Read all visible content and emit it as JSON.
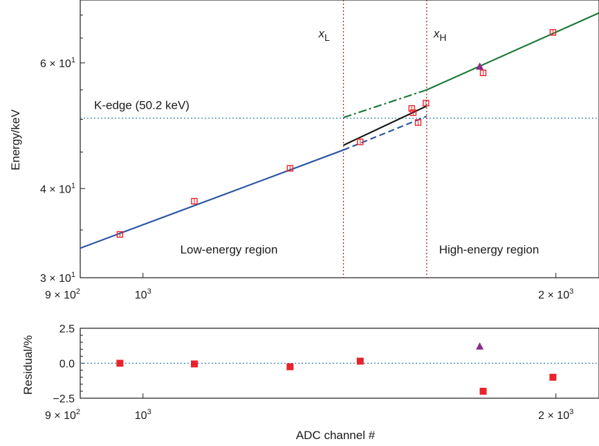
{
  "chart_data": [
    {
      "type": "scatter",
      "panel": "main",
      "ylabel": "Energy/keV",
      "xscale": "log",
      "yscale": "log",
      "xlim": [
        900,
        2150
      ],
      "ylim": [
        30,
        73.5
      ],
      "x_ticks": [
        {
          "value": 900,
          "label": "9 × 10",
          "exp": "2"
        },
        {
          "value": 1000,
          "label": "10",
          "exp": "3"
        },
        {
          "value": 2000,
          "label": "2 × 10",
          "exp": "3"
        }
      ],
      "y_ticks": [
        {
          "value": 30,
          "label": "3 × 10",
          "exp": "1"
        },
        {
          "value": 40,
          "label": "4 × 10",
          "exp": "1"
        },
        {
          "value": 60,
          "label": "6 × 10",
          "exp": "1"
        }
      ],
      "y_minor_ticks": [
        35,
        45,
        50,
        55,
        65,
        70
      ],
      "series": [
        {
          "role": "calibration-points",
          "marker": "square-open",
          "color": "#e8232a",
          "points": [
            {
              "x": 962,
              "y": 34.5
            },
            {
              "x": 1090,
              "y": 38.4
            },
            {
              "x": 1280,
              "y": 42.7
            },
            {
              "x": 1440,
              "y": 46.5
            },
            {
              "x": 1570,
              "y": 51.8
            },
            {
              "x": 1574,
              "y": 51.1
            },
            {
              "x": 1587,
              "y": 49.5
            },
            {
              "x": 1608,
              "y": 52.7
            },
            {
              "x": 1770,
              "y": 58.1
            },
            {
              "x": 1990,
              "y": 66.2
            }
          ]
        },
        {
          "role": "outlier-point",
          "marker": "triangle",
          "color": "#8b2a8c",
          "points": [
            {
              "x": 1760,
              "y": 59.3
            }
          ]
        }
      ],
      "lines": [
        {
          "role": "low-energy-fit",
          "style": "solid",
          "color": "#2a55a3",
          "x": [
            900,
            1400
          ],
          "y": [
            33.0,
            45.3
          ]
        },
        {
          "role": "low-energy-extrapolation",
          "style": "dashed",
          "color": "#2a55a3",
          "x": [
            1400,
            1610
          ],
          "y": [
            45.3,
            50.5
          ]
        },
        {
          "role": "transition-fit",
          "style": "solid",
          "color": "#1a1a1a",
          "x": [
            1400,
            1610
          ],
          "y": [
            46.0,
            52.2
          ]
        },
        {
          "role": "high-energy-extrapolation",
          "style": "dashdot",
          "color": "#1f7a3a",
          "x": [
            1400,
            1610
          ],
          "y": [
            50.3,
            55.0
          ]
        },
        {
          "role": "high-energy-fit",
          "style": "solid",
          "color": "#1f7a3a",
          "x": [
            1610,
            2150
          ],
          "y": [
            55.0,
            70.5
          ]
        }
      ],
      "reference_lines": [
        {
          "orientation": "horizontal",
          "value": 50.2,
          "style": "dotted",
          "color": "#2e7fb5",
          "label": "K-edge (50.2 keV)"
        },
        {
          "orientation": "vertical",
          "value": 1400,
          "style": "dotted",
          "color": "#9b2a2a",
          "label": "x",
          "label_sub": "L"
        },
        {
          "orientation": "vertical",
          "value": 1610,
          "style": "dotted",
          "color": "#9b2a2a",
          "label": "x",
          "label_sub": "H"
        }
      ],
      "annotations": [
        "Low-energy region",
        "High-energy region"
      ]
    },
    {
      "type": "scatter",
      "panel": "residual",
      "xlabel": "ADC channel #",
      "ylabel": "Residual/%",
      "xscale": "log",
      "xlim": [
        900,
        2150
      ],
      "ylim": [
        -2.5,
        2.5
      ],
      "x_ticks": [
        {
          "value": 900,
          "label": "9 × 10",
          "exp": "2"
        },
        {
          "value": 1000,
          "label": "10",
          "exp": "3"
        },
        {
          "value": 2000,
          "label": "2 × 10",
          "exp": "3"
        }
      ],
      "y_ticks": [
        {
          "value": 2.5,
          "label": "2.5"
        },
        {
          "value": 0.0,
          "label": "0.0"
        },
        {
          "value": -2.5,
          "label": "−2.5"
        }
      ],
      "y_minor_ticks": [
        -2.0,
        -1.5,
        -1.0,
        -0.5,
        0.5,
        1.0,
        1.5,
        2.0
      ],
      "series": [
        {
          "marker": "square-filled",
          "color": "#e8232a",
          "points": [
            {
              "x": 962,
              "y": 0.0
            },
            {
              "x": 1090,
              "y": -0.05
            },
            {
              "x": 1280,
              "y": -0.25
            },
            {
              "x": 1440,
              "y": 0.15
            },
            {
              "x": 1770,
              "y": -2.0
            },
            {
              "x": 1990,
              "y": -1.0
            }
          ]
        },
        {
          "marker": "triangle",
          "color": "#8b2a8c",
          "points": [
            {
              "x": 1760,
              "y": 1.2
            }
          ]
        }
      ],
      "reference_lines": [
        {
          "orientation": "horizontal",
          "value": 0.0,
          "style": "dotted",
          "color": "#2e7fb5"
        }
      ]
    }
  ]
}
